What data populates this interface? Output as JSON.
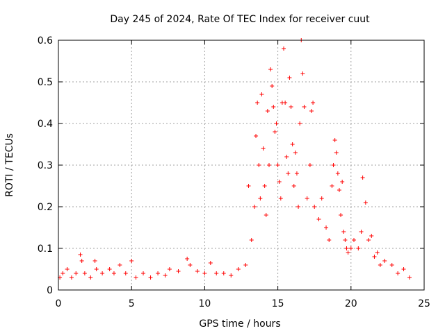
{
  "chart_data": {
    "type": "scatter",
    "title": "Day 245 of 2024, Rate Of TEC Index for receiver cuut",
    "xlabel": "GPS time / hours",
    "ylabel": "ROTI / TECUs",
    "xlim": [
      0,
      25
    ],
    "ylim": [
      0,
      0.6
    ],
    "xticks": [
      "0",
      "5",
      "10",
      "15",
      "20",
      "25"
    ],
    "yticks": [
      "0",
      "0.1",
      "0.2",
      "0.3",
      "0.4",
      "0.5",
      "0.6"
    ],
    "grid": true,
    "marker": "+",
    "color": "#ff0000",
    "series": [
      {
        "x": [
          0.1,
          0.3,
          0.6,
          0.9,
          1.2,
          1.5,
          1.6,
          1.8,
          2.2,
          2.5,
          2.6,
          3.0,
          3.5,
          3.8,
          4.2,
          4.6,
          5.0,
          5.3,
          5.8,
          6.3,
          6.8,
          7.3,
          7.6,
          8.2,
          8.8,
          9.0,
          9.5,
          10.0,
          10.4,
          10.8,
          11.3,
          11.8,
          12.3,
          12.8,
          13.0,
          13.2,
          13.4,
          13.5,
          13.6,
          13.7,
          13.8,
          13.9,
          14.0,
          14.1,
          14.2,
          14.3,
          14.4,
          14.5,
          14.6,
          14.7,
          14.8,
          14.9,
          15.0,
          15.1,
          15.2,
          15.3,
          15.4,
          15.5,
          15.6,
          15.7,
          15.8,
          15.9,
          16.0,
          16.1,
          16.2,
          16.3,
          16.4,
          16.5,
          16.6,
          16.7,
          16.8,
          17.0,
          17.2,
          17.3,
          17.4,
          17.5,
          17.8,
          18.0,
          18.3,
          18.5,
          18.7,
          18.8,
          18.9,
          19.0,
          19.1,
          19.2,
          19.3,
          19.4,
          19.5,
          19.6,
          19.7,
          19.8,
          20.0,
          20.2,
          20.5,
          20.7,
          20.8,
          21.0,
          21.2,
          21.4,
          21.6,
          21.8,
          22.0,
          22.3,
          22.8,
          23.2,
          23.6,
          24.0
        ],
        "y": [
          0.03,
          0.04,
          0.05,
          0.03,
          0.04,
          0.085,
          0.07,
          0.04,
          0.03,
          0.07,
          0.05,
          0.04,
          0.05,
          0.04,
          0.06,
          0.04,
          0.07,
          0.03,
          0.04,
          0.03,
          0.04,
          0.035,
          0.05,
          0.045,
          0.075,
          0.06,
          0.045,
          0.04,
          0.065,
          0.04,
          0.04,
          0.035,
          0.05,
          0.06,
          0.25,
          0.12,
          0.2,
          0.37,
          0.45,
          0.3,
          0.22,
          0.47,
          0.34,
          0.25,
          0.18,
          0.43,
          0.3,
          0.53,
          0.49,
          0.44,
          0.38,
          0.4,
          0.3,
          0.26,
          0.22,
          0.45,
          0.58,
          0.45,
          0.32,
          0.28,
          0.51,
          0.44,
          0.35,
          0.25,
          0.33,
          0.28,
          0.2,
          0.4,
          0.6,
          0.52,
          0.44,
          0.22,
          0.3,
          0.43,
          0.45,
          0.2,
          0.17,
          0.22,
          0.15,
          0.12,
          0.25,
          0.3,
          0.36,
          0.33,
          0.28,
          0.24,
          0.18,
          0.26,
          0.14,
          0.12,
          0.1,
          0.09,
          0.1,
          0.12,
          0.1,
          0.14,
          0.27,
          0.21,
          0.12,
          0.13,
          0.08,
          0.09,
          0.06,
          0.07,
          0.06,
          0.04,
          0.05,
          0.03
        ]
      }
    ]
  }
}
